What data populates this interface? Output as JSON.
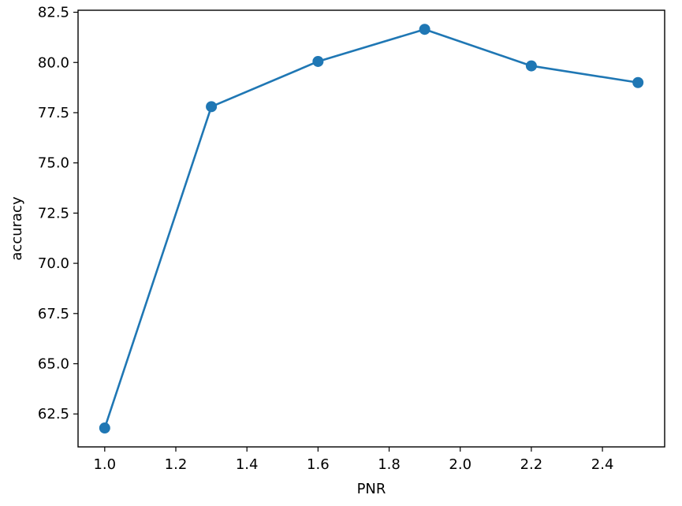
{
  "chart_data": {
    "type": "line",
    "title": "",
    "xlabel": "PNR",
    "ylabel": "accuracy",
    "x": [
      1.0,
      1.3,
      1.6,
      1.9,
      2.2,
      2.5
    ],
    "series": [
      {
        "values": [
          61.8,
          77.8,
          80.05,
          81.65,
          79.83,
          79.0
        ],
        "color": "#1f77b4",
        "marker": "circle"
      }
    ],
    "xlim": [
      0.925,
      2.575
    ],
    "ylim": [
      60.86,
      82.6
    ],
    "xticks": [
      1.0,
      1.2,
      1.4,
      1.6,
      1.8,
      2.0,
      2.2,
      2.4
    ],
    "xtick_labels": [
      "1.0",
      "1.2",
      "1.4",
      "1.6",
      "1.8",
      "2.0",
      "2.2",
      "2.4"
    ],
    "yticks": [
      62.5,
      65.0,
      67.5,
      70.0,
      72.5,
      75.0,
      77.5,
      80.0,
      82.5
    ],
    "ytick_labels": [
      "62.5",
      "65.0",
      "67.5",
      "70.0",
      "72.5",
      "75.0",
      "77.5",
      "80.0",
      "82.5"
    ],
    "grid": false,
    "legend": "none"
  }
}
